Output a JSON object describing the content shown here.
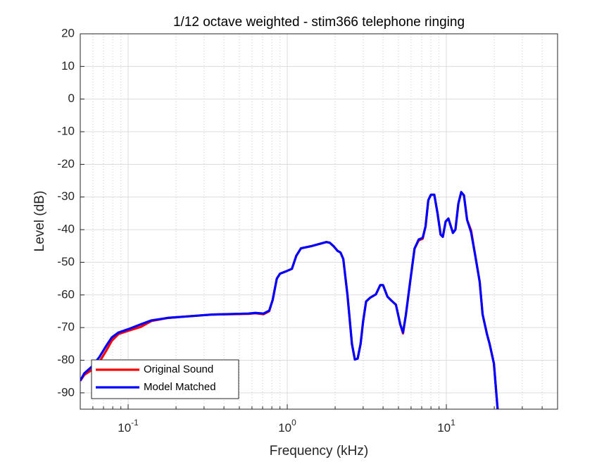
{
  "chart_data": {
    "type": "line",
    "title": "1/12 octave weighted - stim366 telephone ringing",
    "x_label": "Frequency (kHz)",
    "y_label": "Level (dB)",
    "x_scale": "log",
    "grid": true,
    "legend_position": "southwest",
    "xlim": [
      0.05,
      50
    ],
    "ylim": [
      -95,
      20
    ],
    "xticks": [
      {
        "value": 0.1,
        "label": "10^-1"
      },
      {
        "value": 1,
        "label": "10^0"
      },
      {
        "value": 10,
        "label": "10^1"
      }
    ],
    "yticks": [
      -90,
      -80,
      -70,
      -60,
      -50,
      -40,
      -30,
      -20,
      -10,
      0,
      10,
      20
    ],
    "x": [
      0.05,
      0.053,
      0.059,
      0.066,
      0.073,
      0.079,
      0.087,
      0.1,
      0.12,
      0.14,
      0.18,
      0.34,
      0.57,
      0.63,
      0.71,
      0.77,
      0.81,
      0.86,
      0.9,
      0.98,
      1.07,
      1.14,
      1.22,
      1.43,
      1.76,
      1.85,
      1.95,
      2.07,
      2.16,
      2.25,
      2.39,
      2.55,
      2.66,
      2.77,
      2.89,
      3.0,
      3.13,
      3.33,
      3.61,
      3.84,
      4.0,
      4.26,
      4.53,
      4.82,
      5.13,
      5.34,
      5.57,
      5.92,
      6.31,
      6.7,
      7.1,
      7.4,
      7.7,
      8.0,
      8.4,
      8.8,
      9.2,
      9.5,
      9.9,
      10.3,
      11.0,
      11.4,
      11.9,
      12.4,
      12.9,
      13.5,
      14.3,
      15.2,
      16.2,
      16.9,
      18.0,
      18.7,
      19.9,
      21.0
    ],
    "series": [
      {
        "name": "Original Sound",
        "color": "#ff0000",
        "values": [
          -86.3,
          -84.5,
          -83,
          -80.5,
          -77,
          -74,
          -72,
          -71,
          -69.8,
          -68,
          -67,
          -66,
          -65.8,
          -65.6,
          -65.9,
          -65,
          -61.5,
          -55,
          -53.5,
          -52.8,
          -52,
          -48,
          -45.7,
          -45,
          -43.8,
          -44,
          -45,
          -46.5,
          -47,
          -49,
          -60,
          -75,
          -79.8,
          -79.5,
          -75,
          -68,
          -62,
          -60.8,
          -59.8,
          -57,
          -57,
          -60.5,
          -61.8,
          -63,
          -69,
          -71.8,
          -66,
          -56,
          -45.8,
          -43.3,
          -42.8,
          -39,
          -31,
          -29.3,
          -29.3,
          -35,
          -41.5,
          -42.2,
          -37.5,
          -36.6,
          -41,
          -40,
          -32,
          -28.5,
          -29.5,
          -37,
          -40.2,
          -48,
          -56,
          -66,
          -72,
          -75,
          -81,
          -95
        ]
      },
      {
        "name": "Model Matched",
        "color": "#0000ff",
        "values": [
          -86.3,
          -84,
          -82,
          -79,
          -75.5,
          -73,
          -71.5,
          -70.5,
          -69,
          -67.8,
          -67,
          -66,
          -65.7,
          -65.5,
          -65.7,
          -64.8,
          -61.5,
          -55,
          -53.5,
          -52.8,
          -52,
          -48,
          -45.7,
          -45,
          -43.8,
          -44,
          -45,
          -46.5,
          -47,
          -49,
          -60,
          -75,
          -79.8,
          -79.5,
          -75,
          -68,
          -62,
          -60.8,
          -59.8,
          -57,
          -57,
          -60.5,
          -61.8,
          -63,
          -69,
          -71.5,
          -66,
          -56,
          -45.8,
          -43,
          -42.5,
          -39,
          -31,
          -29.3,
          -29.3,
          -35,
          -41.5,
          -42.2,
          -37.5,
          -36.6,
          -41,
          -40,
          -32,
          -28.5,
          -29.5,
          -37,
          -40.8,
          -48,
          -56,
          -66,
          -72,
          -75,
          -81,
          -95
        ]
      }
    ]
  }
}
